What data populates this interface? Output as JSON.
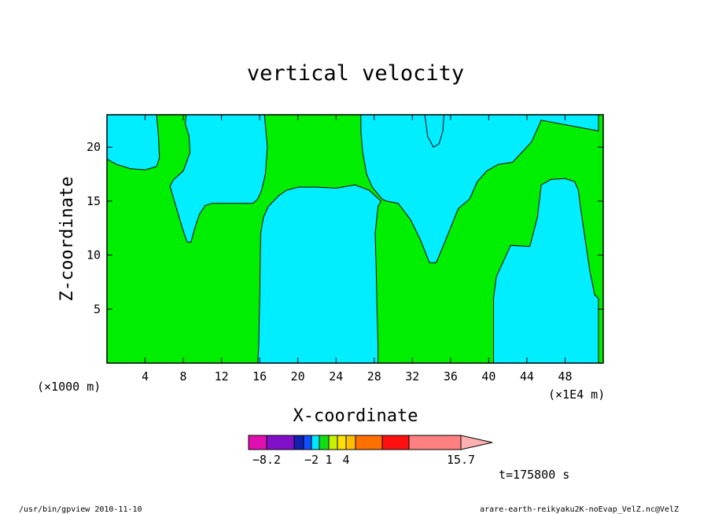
{
  "chart_data": {
    "type": "contour",
    "title": "vertical velocity",
    "xlabel": "X-coordinate",
    "ylabel": "Z-coordinate",
    "x_scale_note": "(×1E4 m)",
    "y_scale_note": "(×1000 m)",
    "xlim": [
      0,
      52
    ],
    "ylim": [
      0,
      23
    ],
    "x_ticks": [
      4,
      8,
      12,
      16,
      20,
      24,
      28,
      32,
      36,
      40,
      44,
      48
    ],
    "y_ticks": [
      5,
      10,
      15,
      20
    ],
    "time_label": "t=175800 s",
    "colorbar": {
      "levels": [
        -8.2,
        -2,
        1,
        4,
        15.7
      ],
      "tick_labels": [
        "−8.2",
        "−2",
        "1",
        "4",
        "15.7"
      ],
      "colors": [
        "#e010b0",
        "#8010c8",
        "#1020b0",
        "#1050ff",
        "#00e8ff",
        "#10e010",
        "#c8f000",
        "#ffe000",
        "#ffc000",
        "#ff7000",
        "#ff1010",
        "#ff8080",
        "#ffb0b0"
      ]
    },
    "fill_colors": {
      "negative": "#00eeff",
      "positive": "#00ee00"
    },
    "regions": [
      {
        "sign": "negative",
        "points": [
          [
            0,
            23
          ],
          [
            5.2,
            23
          ],
          [
            5.4,
            21
          ],
          [
            5.5,
            19
          ],
          [
            5.2,
            18.2
          ],
          [
            4.0,
            17.9
          ],
          [
            2.5,
            18.0
          ],
          [
            1.0,
            18.4
          ],
          [
            0,
            18.9
          ]
        ]
      },
      {
        "sign": "negative",
        "points": [
          [
            8.3,
            23
          ],
          [
            16.5,
            23
          ],
          [
            16.8,
            20
          ],
          [
            16.6,
            17.5
          ],
          [
            16.2,
            16.0
          ],
          [
            15.8,
            15.2
          ],
          [
            15.3,
            14.8
          ],
          [
            11.0,
            14.8
          ],
          [
            10.3,
            14.6
          ],
          [
            9.7,
            13.8
          ],
          [
            9.2,
            12.5
          ],
          [
            8.8,
            11.2
          ],
          [
            8.4,
            11.2
          ],
          [
            7.9,
            12.5
          ],
          [
            7.4,
            14.0
          ],
          [
            6.9,
            15.5
          ],
          [
            6.6,
            16.4
          ],
          [
            7.0,
            17.0
          ],
          [
            8.0,
            17.8
          ],
          [
            8.7,
            19.5
          ],
          [
            8.6,
            21
          ],
          [
            8.2,
            22.2
          ]
        ]
      },
      {
        "sign": "negative",
        "points": [
          [
            15.8,
            0
          ],
          [
            28.4,
            0
          ],
          [
            28.4,
            1.5
          ],
          [
            28.3,
            5
          ],
          [
            28.2,
            9
          ],
          [
            28.1,
            12
          ],
          [
            28.4,
            14.5
          ],
          [
            28.7,
            15.0
          ],
          [
            27.5,
            16.0
          ],
          [
            26.0,
            16.5
          ],
          [
            24.0,
            16.2
          ],
          [
            22.0,
            16.3
          ],
          [
            20.0,
            16.3
          ],
          [
            18.8,
            16.0
          ],
          [
            18.0,
            15.5
          ],
          [
            16.9,
            14.5
          ],
          [
            16.4,
            13.5
          ],
          [
            16.1,
            12
          ],
          [
            16.0,
            6
          ],
          [
            15.9,
            1.5
          ]
        ]
      },
      {
        "sign": "negative",
        "points": [
          [
            26.6,
            23
          ],
          [
            51.5,
            23
          ],
          [
            51.5,
            21.5
          ],
          [
            45.5,
            22.5
          ],
          [
            44.5,
            20.5
          ],
          [
            42.5,
            18.6
          ],
          [
            41.0,
            18.4
          ],
          [
            39.8,
            17.8
          ],
          [
            38.8,
            16.8
          ],
          [
            38.0,
            15.2
          ],
          [
            36.8,
            14.3
          ],
          [
            35.3,
            11.0
          ],
          [
            34.5,
            9.3
          ],
          [
            33.8,
            9.3
          ],
          [
            32.8,
            11.5
          ],
          [
            31.8,
            13.3
          ],
          [
            30.5,
            14.8
          ],
          [
            29.3,
            15.0
          ],
          [
            28.8,
            15.2
          ],
          [
            27.8,
            16.3
          ],
          [
            27.2,
            17.5
          ],
          [
            26.8,
            19.5
          ],
          [
            26.6,
            21.5
          ]
        ]
      },
      {
        "sign": "negative",
        "points": [
          [
            33.3,
            23
          ],
          [
            33.6,
            21
          ],
          [
            34.2,
            20.0
          ],
          [
            34.8,
            20.3
          ],
          [
            35.2,
            21.5
          ],
          [
            35.3,
            23
          ]
        ]
      },
      {
        "sign": "negative",
        "points": [
          [
            40.5,
            0
          ],
          [
            51.5,
            0
          ],
          [
            51.5,
            6.0
          ],
          [
            51.1,
            6.3
          ],
          [
            50.6,
            8.5
          ],
          [
            50.1,
            11.5
          ],
          [
            49.6,
            14.5
          ],
          [
            49.4,
            16.0
          ],
          [
            49.0,
            16.8
          ],
          [
            48.0,
            17.1
          ],
          [
            46.5,
            17.0
          ],
          [
            45.5,
            16.5
          ],
          [
            45.1,
            13.5
          ],
          [
            44.3,
            10.8
          ],
          [
            42.3,
            10.9
          ],
          [
            40.8,
            8.0
          ],
          [
            40.5,
            6.0
          ],
          [
            40.5,
            3.0
          ]
        ]
      }
    ]
  },
  "colorbar_note_spacer": "",
  "footer": {
    "left": "/usr/bin/gpview  2010-11-10",
    "right": "arare-earth-reikyaku2K-noEvap_VelZ.nc@VelZ"
  }
}
